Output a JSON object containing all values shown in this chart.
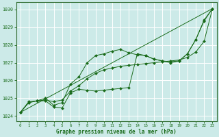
{
  "title": "Graphe pression niveau de la mer (hPa)",
  "bg_color": "#cceae8",
  "grid_color": "#ffffff",
  "line_color": "#1a6b1a",
  "marker_color": "#1a6b1a",
  "xlim": [
    -0.5,
    23.5
  ],
  "ylim": [
    1023.7,
    1030.4
  ],
  "yticks": [
    1024,
    1025,
    1026,
    1027,
    1028,
    1029,
    1030
  ],
  "xticks": [
    0,
    1,
    2,
    3,
    4,
    5,
    6,
    7,
    8,
    9,
    10,
    11,
    12,
    13,
    14,
    15,
    16,
    17,
    18,
    19,
    20,
    21,
    22,
    23
  ],
  "series": [
    {
      "x": [
        0,
        1,
        2,
        3,
        4,
        5,
        6,
        7,
        8,
        9,
        10,
        11,
        12,
        13,
        14,
        15,
        16,
        17,
        18,
        19,
        20,
        21,
        22,
        23
      ],
      "y": [
        1024.2,
        1024.8,
        1024.85,
        1025.0,
        1024.6,
        1024.75,
        1025.8,
        1026.2,
        1027.0,
        1027.4,
        1027.5,
        1027.65,
        1027.75,
        1027.55,
        1027.45,
        1027.4,
        1027.2,
        1027.1,
        1027.05,
        1027.1,
        1027.5,
        1028.3,
        1029.35,
        1030.05
      ],
      "marker": true
    },
    {
      "x": [
        0,
        1,
        2,
        3,
        4,
        5,
        6,
        7,
        8,
        9,
        10,
        11,
        12,
        13,
        14,
        15,
        16,
        17,
        18,
        19,
        20,
        21,
        22,
        23
      ],
      "y": [
        1024.2,
        1024.75,
        1024.85,
        1024.85,
        1024.5,
        1024.45,
        1025.3,
        1025.5,
        1025.45,
        1025.4,
        1025.45,
        1025.5,
        1025.55,
        1025.6,
        1027.5,
        1027.4,
        1027.2,
        1027.1,
        1027.0,
        1027.1,
        1027.5,
        1028.3,
        1029.4,
        1030.05
      ],
      "marker": true
    },
    {
      "x": [
        0,
        23
      ],
      "y": [
        1024.2,
        1030.05
      ],
      "marker": false
    },
    {
      "x": [
        0,
        1,
        2,
        3,
        4,
        5,
        6,
        7,
        8,
        9,
        10,
        11,
        12,
        13,
        14,
        15,
        16,
        17,
        18,
        19,
        20,
        21,
        22,
        23
      ],
      "y": [
        1024.2,
        1024.75,
        1024.85,
        1024.9,
        1024.8,
        1024.9,
        1025.4,
        1025.7,
        1026.1,
        1026.4,
        1026.6,
        1026.7,
        1026.8,
        1026.85,
        1026.9,
        1026.95,
        1027.0,
        1027.05,
        1027.1,
        1027.15,
        1027.3,
        1027.6,
        1028.2,
        1030.05
      ],
      "marker": true
    }
  ]
}
